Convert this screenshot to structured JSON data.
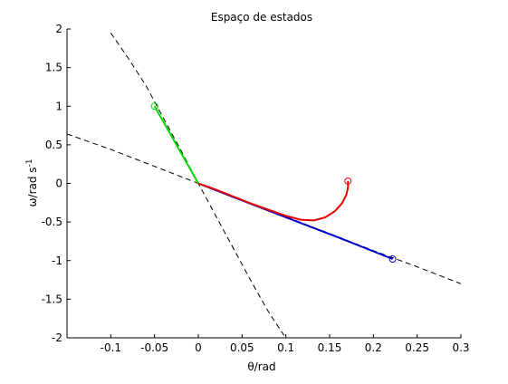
{
  "chart_data": {
    "type": "line",
    "title": "Espaço de estados",
    "xlabel": "θ/rad",
    "ylabel": {
      "main": "ω/rad s",
      "sup": "-1"
    },
    "xlim": [
      -0.15,
      0.3
    ],
    "ylim": [
      -2,
      2
    ],
    "xticks": [
      -0.1,
      -0.05,
      0,
      0.05,
      0.1,
      0.15,
      0.2,
      0.25,
      0.3
    ],
    "xtick_labels": [
      "-0.1",
      "-0.05",
      "0",
      "0.05",
      "0.1",
      "0.15",
      "0.2",
      "0.25",
      "0.3"
    ],
    "yticks": [
      -2,
      -1.5,
      -1,
      -0.5,
      0,
      0.5,
      1,
      1.5,
      2
    ],
    "ytick_labels": [
      "-2",
      "-1.5",
      "-1",
      "-0.5",
      "0",
      "0.5",
      "1",
      "1.5",
      "2"
    ],
    "grid": false,
    "legend": "none",
    "series": [
      {
        "style": "dashed",
        "color": "#000000",
        "points": [
          [
            -0.1,
            1.95
          ],
          [
            -0.08,
            1.62
          ],
          [
            -0.06,
            1.27
          ],
          [
            -0.04,
            0.85
          ],
          [
            -0.02,
            0.43
          ],
          [
            0,
            0
          ],
          [
            0.02,
            -0.42
          ],
          [
            0.04,
            -0.84
          ],
          [
            0.06,
            -1.26
          ],
          [
            0.08,
            -1.66
          ],
          [
            0.098,
            -1.97
          ]
        ]
      },
      {
        "style": "dashed",
        "color": "#000000",
        "points": [
          [
            -0.15,
            0.64
          ],
          [
            -0.1,
            0.44
          ],
          [
            -0.05,
            0.22
          ],
          [
            0,
            0
          ],
          [
            0.05,
            -0.22
          ],
          [
            0.1,
            -0.43
          ],
          [
            0.15,
            -0.65
          ],
          [
            0.2,
            -0.87
          ],
          [
            0.25,
            -1.08
          ],
          [
            0.3,
            -1.3
          ]
        ]
      },
      {
        "style": "solid",
        "color": "#00dd00",
        "points": [
          [
            -0.05,
            1.0
          ],
          [
            0,
            0
          ]
        ]
      },
      {
        "style": "solid",
        "color": "#0000cc",
        "points": [
          [
            0.222,
            -0.98
          ],
          [
            0.16,
            -0.7
          ],
          [
            0.1,
            -0.44
          ],
          [
            0.05,
            -0.22
          ],
          [
            0,
            0
          ]
        ]
      },
      {
        "style": "solid",
        "color": "#ee0000",
        "points": [
          [
            0.171,
            0.03
          ],
          [
            0.171,
            -0.05
          ],
          [
            0.169,
            -0.15
          ],
          [
            0.164,
            -0.26
          ],
          [
            0.156,
            -0.36
          ],
          [
            0.145,
            -0.44
          ],
          [
            0.132,
            -0.48
          ],
          [
            0.117,
            -0.47
          ],
          [
            0.1,
            -0.42
          ],
          [
            0.08,
            -0.34
          ],
          [
            0.06,
            -0.26
          ],
          [
            0.04,
            -0.17
          ],
          [
            0.02,
            -0.08
          ],
          [
            0,
            0
          ]
        ]
      }
    ],
    "markers": [
      {
        "x": -0.05,
        "y": 1.0,
        "color": "#00dd00",
        "shape": "circle"
      },
      {
        "x": 0.222,
        "y": -0.98,
        "color": "#0000cc",
        "shape": "circle"
      },
      {
        "x": 0.171,
        "y": 0.03,
        "color": "#ee0000",
        "shape": "circle"
      }
    ]
  }
}
